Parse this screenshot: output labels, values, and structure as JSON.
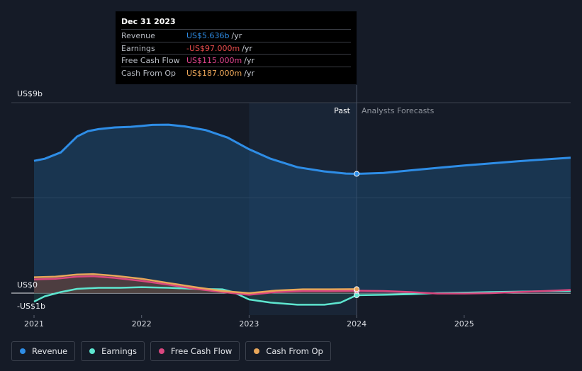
{
  "tooltip": {
    "date": "Dec 31 2023",
    "rows": [
      {
        "name": "Revenue",
        "value": "US$5.636b",
        "unit": "/yr",
        "color": "#2e8de6"
      },
      {
        "name": "Earnings",
        "value": "-US$97.000m",
        "unit": "/yr",
        "color": "#e54b4b"
      },
      {
        "name": "Free Cash Flow",
        "value": "US$115.000m",
        "unit": "/yr",
        "color": "#e0448e"
      },
      {
        "name": "Cash From Op",
        "value": "US$187.000m",
        "unit": "/yr",
        "color": "#f0a95a"
      }
    ]
  },
  "zones": {
    "past": "Past",
    "forecast": "Analysts Forecasts"
  },
  "legend": [
    {
      "name": "Revenue",
      "color": "#2e8de6"
    },
    {
      "name": "Earnings",
      "color": "#5ee6d0"
    },
    {
      "name": "Free Cash Flow",
      "color": "#d9477f"
    },
    {
      "name": "Cash From Op",
      "color": "#e8a65a"
    }
  ],
  "chart_data": {
    "type": "line",
    "ylabel_top": "US$9b",
    "ylabel_zero": "US$0",
    "ylabel_bottom": "-US$1b",
    "ylim": [
      -1,
      9
    ],
    "xlim": [
      2021.0,
      2025.99
    ],
    "x_ticks": [
      "2021",
      "2022",
      "2023",
      "2024",
      "2025"
    ],
    "x_tick_values": [
      2021,
      2022,
      2023,
      2024,
      2025
    ],
    "past_end": 2024.0,
    "highlight_start": 2023.0,
    "highlight_x": 2024.0,
    "grid": true,
    "series": [
      {
        "name": "Revenue",
        "color": "#2e8de6",
        "x": [
          2021.0,
          2021.1,
          2021.25,
          2021.4,
          2021.5,
          2021.6,
          2021.75,
          2021.9,
          2022.0,
          2022.1,
          2022.25,
          2022.4,
          2022.6,
          2022.8,
          2023.0,
          2023.2,
          2023.45,
          2023.7,
          2023.9,
          2024.0,
          2024.25,
          2024.5,
          2024.75,
          2025.0,
          2025.25,
          2025.5,
          2025.75,
          2025.99
        ],
        "y": [
          6.25,
          6.35,
          6.65,
          7.4,
          7.65,
          7.75,
          7.83,
          7.86,
          7.9,
          7.95,
          7.96,
          7.88,
          7.7,
          7.35,
          6.8,
          6.35,
          5.95,
          5.75,
          5.65,
          5.636,
          5.68,
          5.8,
          5.92,
          6.03,
          6.13,
          6.23,
          6.32,
          6.4
        ]
      },
      {
        "name": "Earnings",
        "color": "#5ee6d0",
        "x": [
          2021.0,
          2021.1,
          2021.25,
          2021.4,
          2021.6,
          2021.8,
          2022.0,
          2022.25,
          2022.5,
          2022.75,
          2022.85,
          2023.0,
          2023.2,
          2023.45,
          2023.7,
          2023.85,
          2024.0,
          2024.25,
          2024.5,
          2024.75,
          2025.0,
          2025.25,
          2025.5,
          2025.75,
          2025.99
        ],
        "y": [
          -0.4,
          -0.15,
          0.05,
          0.2,
          0.25,
          0.25,
          0.28,
          0.25,
          0.2,
          0.18,
          0.05,
          -0.3,
          -0.45,
          -0.55,
          -0.55,
          -0.45,
          -0.097,
          -0.08,
          -0.05,
          0.0,
          0.02,
          0.05,
          0.07,
          0.09,
          0.1
        ]
      },
      {
        "name": "Free Cash Flow",
        "color": "#d9477f",
        "x": [
          2021.0,
          2021.2,
          2021.4,
          2021.55,
          2021.75,
          2022.0,
          2022.25,
          2022.5,
          2022.75,
          2023.0,
          2023.25,
          2023.5,
          2023.75,
          2024.0,
          2024.25,
          2024.5,
          2024.75,
          2025.0,
          2025.25,
          2025.5,
          2025.75,
          2025.99
        ],
        "y": [
          0.65,
          0.68,
          0.78,
          0.8,
          0.72,
          0.58,
          0.4,
          0.2,
          0.05,
          -0.08,
          0.05,
          0.1,
          0.1,
          0.115,
          0.1,
          0.05,
          -0.02,
          -0.02,
          0.0,
          0.05,
          0.1,
          0.15
        ]
      },
      {
        "name": "Cash From Op",
        "color": "#e8a65a",
        "x": [
          2021.0,
          2021.2,
          2021.4,
          2021.55,
          2021.75,
          2022.0,
          2022.25,
          2022.5,
          2022.75,
          2023.0,
          2023.25,
          2023.5,
          2023.75,
          2024.0
        ],
        "y": [
          0.75,
          0.78,
          0.88,
          0.9,
          0.82,
          0.68,
          0.48,
          0.28,
          0.1,
          0.0,
          0.12,
          0.18,
          0.18,
          0.187
        ]
      }
    ]
  }
}
